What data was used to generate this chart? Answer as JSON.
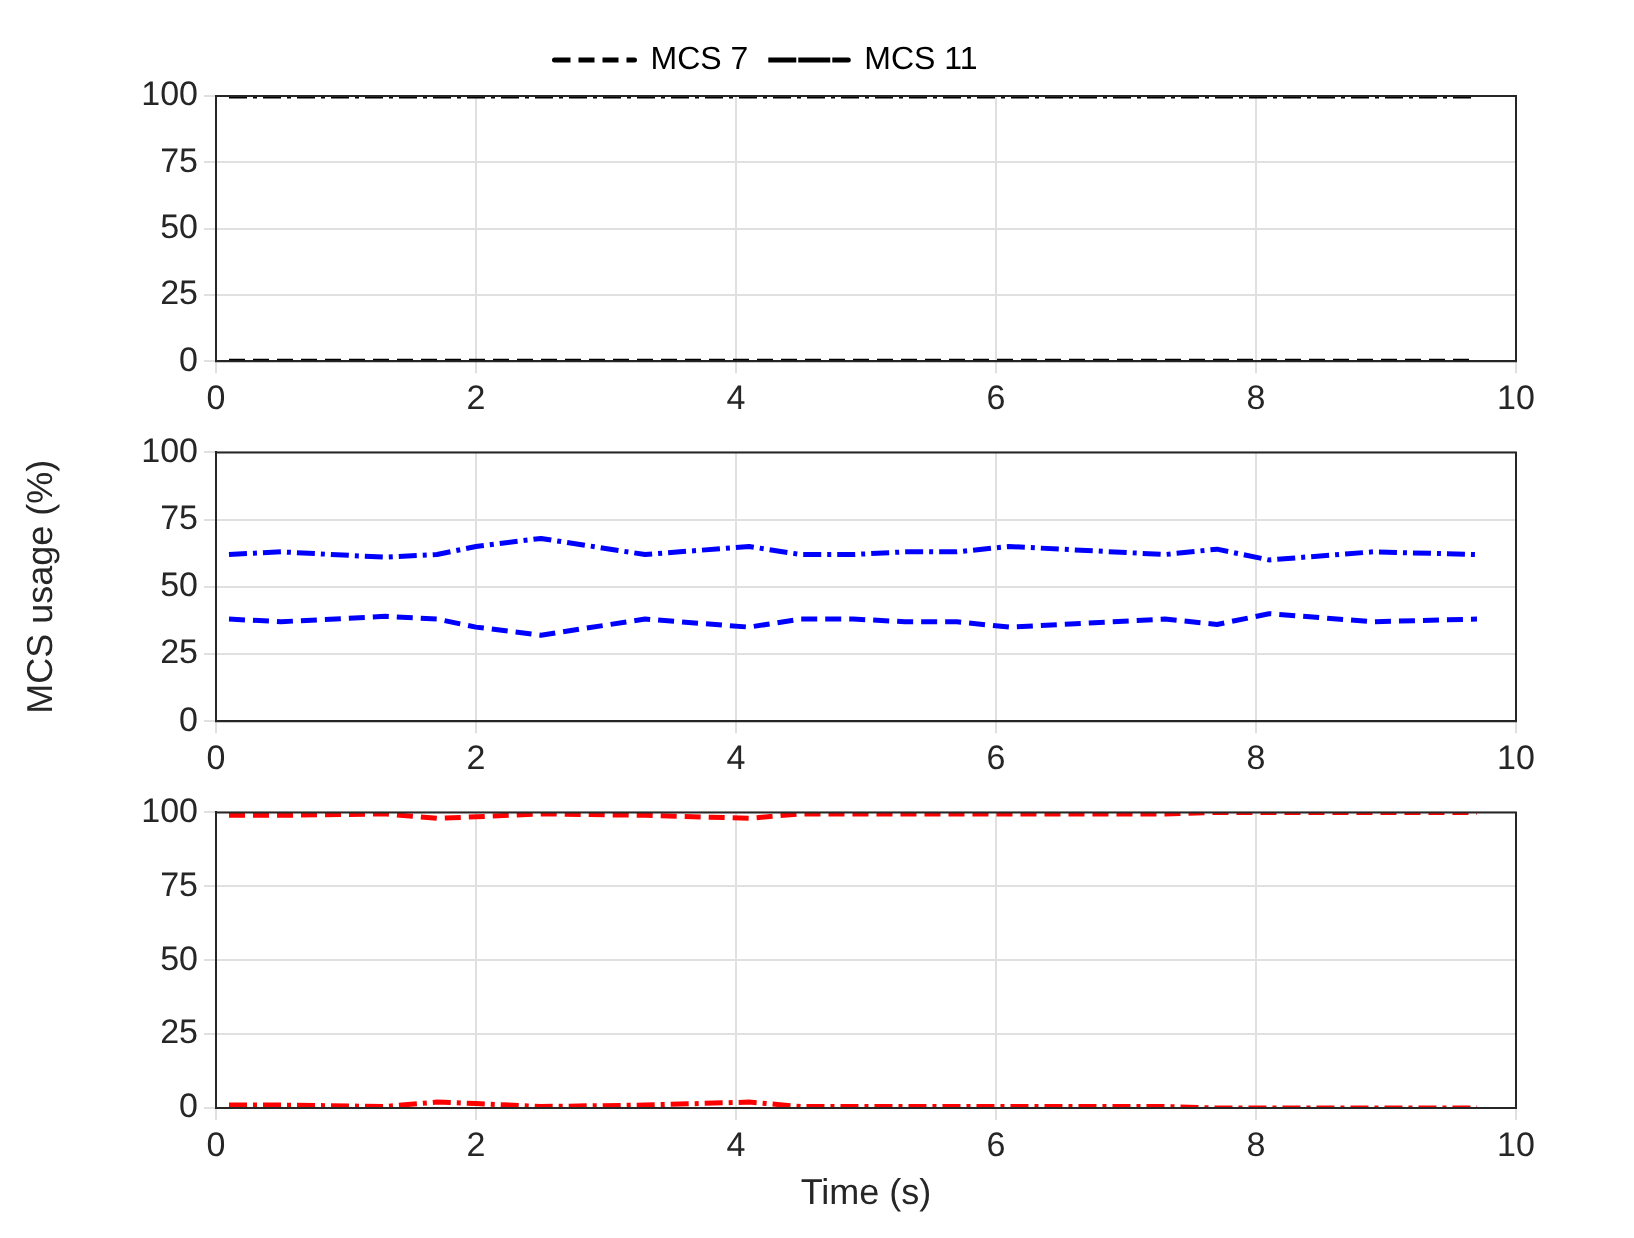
{
  "chart_data": [
    {
      "type": "line",
      "x": [
        0.1,
        9.7
      ],
      "xlim": [
        0,
        10
      ],
      "xticks": [
        0,
        2,
        4,
        6,
        8,
        10
      ],
      "ylim": [
        0,
        100
      ],
      "yticks": [
        0,
        25,
        50,
        75,
        100
      ],
      "grid": true,
      "legend": "top",
      "marker": "none",
      "series": [
        {
          "name": "MCS 7",
          "color": "#000000",
          "line_style": "dashed",
          "values": [
            0,
            0
          ]
        },
        {
          "name": "MCS 11",
          "color": "#000000",
          "line_style": "dashdot",
          "values": [
            100,
            100
          ]
        }
      ]
    },
    {
      "type": "line",
      "ylabel": "MCS usage (%)",
      "x": [
        0.1,
        0.5,
        1.3,
        1.7,
        2.0,
        2.5,
        3.3,
        4.1,
        4.5,
        4.9,
        5.3,
        5.7,
        6.1,
        6.5,
        7.3,
        7.7,
        8.1,
        8.9,
        9.7
      ],
      "xlim": [
        0,
        10
      ],
      "xticks": [
        0,
        2,
        4,
        6,
        8,
        10
      ],
      "ylim": [
        0,
        100
      ],
      "yticks": [
        0,
        25,
        50,
        75,
        100
      ],
      "grid": true,
      "marker": "none",
      "series": [
        {
          "color": "#0000ff",
          "line_style": "dashed",
          "values": [
            38,
            37,
            39,
            38,
            35,
            32,
            38,
            35,
            38,
            38,
            37,
            37,
            35,
            36,
            38,
            36,
            40,
            37,
            38
          ]
        },
        {
          "color": "#0000ff",
          "line_style": "dashdot",
          "values": [
            62,
            63,
            61,
            62,
            65,
            68,
            62,
            65,
            62,
            62,
            63,
            63,
            65,
            64,
            62,
            64,
            60,
            63,
            62
          ]
        }
      ]
    },
    {
      "type": "line",
      "xlabel": "Time (s)",
      "x": [
        0.1,
        0.5,
        1.3,
        1.7,
        2.0,
        2.5,
        3.3,
        4.1,
        4.5,
        4.9,
        5.3,
        5.7,
        6.1,
        6.5,
        7.3,
        7.7,
        8.1,
        8.9,
        9.7
      ],
      "xlim": [
        0,
        10
      ],
      "xticks": [
        0,
        2,
        4,
        6,
        8,
        10
      ],
      "ylim": [
        0,
        100
      ],
      "yticks": [
        0,
        25,
        50,
        75,
        100
      ],
      "grid": true,
      "marker": "none",
      "series": [
        {
          "color": "#ff0000",
          "line_style": "dashed",
          "values": [
            99,
            99,
            99.5,
            98,
            98.5,
            99.5,
            99,
            98,
            99.5,
            99.5,
            99.5,
            99.5,
            99.5,
            99.5,
            99.5,
            100,
            100,
            100,
            100
          ]
        },
        {
          "color": "#ff0000",
          "line_style": "dashdot",
          "values": [
            1,
            1,
            0.5,
            2,
            1.5,
            0.5,
            1,
            2,
            0.5,
            0.5,
            0.5,
            0.5,
            0.5,
            0.5,
            0.5,
            0,
            0,
            0,
            0
          ]
        }
      ]
    }
  ]
}
